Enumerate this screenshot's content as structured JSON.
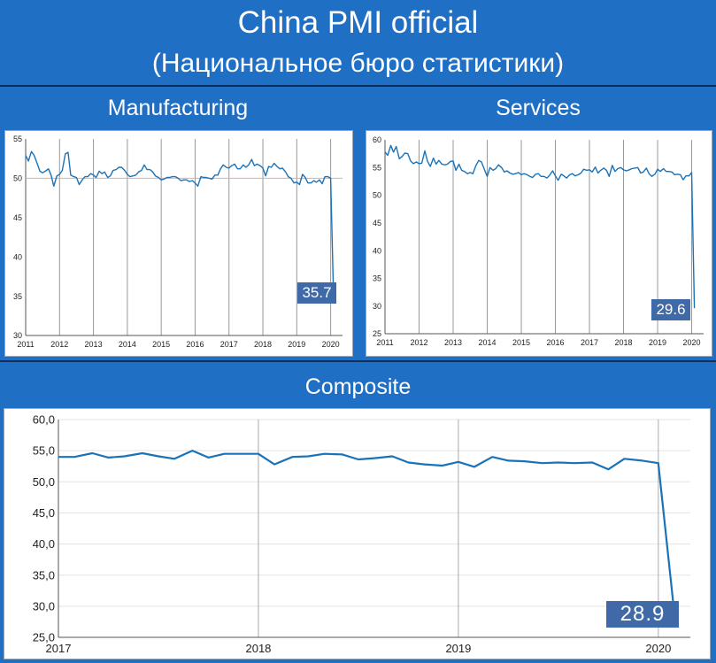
{
  "header": {
    "title": "China PMI official",
    "subtitle": "(Национальное бюро статистики)"
  },
  "colors": {
    "background": "#1f6fc5",
    "line": "#1a73b8",
    "reference_line": "#f2a0a0",
    "callout": "#3f6aa7"
  },
  "chart_data": [
    {
      "id": "manufacturing",
      "type": "line",
      "title": "Manufacturing",
      "callout": "35.7",
      "ylim": [
        30,
        55
      ],
      "yticks": [
        "30",
        "35",
        "40",
        "45",
        "50",
        "55"
      ],
      "xlim": [
        2011,
        2020.35
      ],
      "xticks": [
        "2011",
        "2012",
        "2013",
        "2014",
        "2015",
        "2016",
        "2017",
        "2018",
        "2019",
        "2020"
      ],
      "reference_line": 50,
      "grid": "vertical",
      "series": [
        {
          "x": [
            2011.0,
            2011.08,
            2011.17,
            2011.25,
            2011.33,
            2011.42,
            2011.5,
            2011.58,
            2011.67,
            2011.75,
            2011.83,
            2011.92,
            2012.0,
            2012.08,
            2012.17,
            2012.25,
            2012.33,
            2012.42,
            2012.5,
            2012.58,
            2012.67,
            2012.75,
            2012.83,
            2012.92,
            2013.0,
            2013.08,
            2013.17,
            2013.25,
            2013.33,
            2013.42,
            2013.5,
            2013.58,
            2013.67,
            2013.75,
            2013.83,
            2013.92,
            2014.0,
            2014.08,
            2014.17,
            2014.25,
            2014.33,
            2014.42,
            2014.5,
            2014.58,
            2014.67,
            2014.75,
            2014.83,
            2014.92,
            2015.0,
            2015.08,
            2015.17,
            2015.25,
            2015.33,
            2015.42,
            2015.5,
            2015.58,
            2015.67,
            2015.75,
            2015.83,
            2015.92,
            2016.0,
            2016.08,
            2016.17,
            2016.25,
            2016.33,
            2016.42,
            2016.5,
            2016.58,
            2016.67,
            2016.75,
            2016.83,
            2016.92,
            2017.0,
            2017.08,
            2017.17,
            2017.25,
            2017.33,
            2017.42,
            2017.5,
            2017.58,
            2017.67,
            2017.75,
            2017.83,
            2017.92,
            2018.0,
            2018.08,
            2018.17,
            2018.25,
            2018.33,
            2018.42,
            2018.5,
            2018.58,
            2018.67,
            2018.75,
            2018.83,
            2018.92,
            2019.0,
            2019.08,
            2019.17,
            2019.25,
            2019.33,
            2019.42,
            2019.5,
            2019.58,
            2019.67,
            2019.75,
            2019.83,
            2019.92,
            2020.0,
            2020.08
          ],
          "values": [
            52.9,
            52.2,
            53.4,
            52.9,
            52.0,
            50.9,
            50.7,
            50.9,
            51.2,
            50.4,
            49.0,
            50.3,
            50.5,
            51.0,
            53.1,
            53.3,
            50.4,
            50.2,
            50.1,
            49.2,
            49.8,
            50.2,
            50.2,
            50.6,
            50.4,
            50.1,
            50.9,
            50.6,
            50.8,
            50.1,
            50.3,
            51.0,
            51.1,
            51.4,
            51.4,
            51.0,
            50.5,
            50.2,
            50.3,
            50.4,
            50.8,
            51.0,
            51.7,
            51.1,
            51.1,
            50.8,
            50.3,
            50.1,
            49.8,
            49.9,
            50.1,
            50.1,
            50.2,
            50.2,
            50.0,
            49.7,
            49.8,
            49.8,
            49.6,
            49.7,
            49.4,
            49.0,
            50.2,
            50.1,
            50.1,
            50.0,
            49.9,
            50.4,
            50.4,
            51.2,
            51.7,
            51.4,
            51.3,
            51.6,
            51.8,
            51.2,
            51.2,
            51.7,
            51.4,
            51.7,
            52.4,
            51.6,
            51.8,
            51.6,
            51.3,
            50.3,
            51.5,
            51.4,
            51.9,
            51.5,
            51.2,
            51.3,
            50.8,
            50.2,
            50.0,
            49.4,
            49.5,
            49.2,
            50.5,
            50.1,
            49.4,
            49.4,
            49.7,
            49.5,
            49.8,
            49.3,
            50.2,
            50.2,
            50.0,
            35.7
          ]
        }
      ]
    },
    {
      "id": "services",
      "type": "line",
      "title": "Services",
      "callout": "29.6",
      "ylim": [
        25,
        60
      ],
      "yticks": [
        "25",
        "30",
        "35",
        "40",
        "45",
        "50",
        "55",
        "60"
      ],
      "xlim": [
        2011,
        2020.35
      ],
      "xticks": [
        "2011",
        "2012",
        "2013",
        "2014",
        "2015",
        "2016",
        "2017",
        "2018",
        "2019",
        "2020"
      ],
      "grid": "vertical",
      "series": [
        {
          "x": [
            2011.0,
            2011.08,
            2011.17,
            2011.25,
            2011.33,
            2011.42,
            2011.5,
            2011.58,
            2011.67,
            2011.75,
            2011.83,
            2011.92,
            2012.0,
            2012.08,
            2012.17,
            2012.25,
            2012.33,
            2012.42,
            2012.5,
            2012.58,
            2012.67,
            2012.75,
            2012.83,
            2012.92,
            2013.0,
            2013.08,
            2013.17,
            2013.25,
            2013.33,
            2013.42,
            2013.5,
            2013.58,
            2013.67,
            2013.75,
            2013.83,
            2013.92,
            2014.0,
            2014.08,
            2014.17,
            2014.25,
            2014.33,
            2014.42,
            2014.5,
            2014.58,
            2014.67,
            2014.75,
            2014.83,
            2014.92,
            2015.0,
            2015.08,
            2015.17,
            2015.25,
            2015.33,
            2015.42,
            2015.5,
            2015.58,
            2015.67,
            2015.75,
            2015.83,
            2015.92,
            2016.0,
            2016.08,
            2016.17,
            2016.25,
            2016.33,
            2016.42,
            2016.5,
            2016.58,
            2016.67,
            2016.75,
            2016.83,
            2016.92,
            2017.0,
            2017.08,
            2017.17,
            2017.25,
            2017.33,
            2017.42,
            2017.5,
            2017.58,
            2017.67,
            2017.75,
            2017.83,
            2017.92,
            2018.0,
            2018.08,
            2018.17,
            2018.25,
            2018.33,
            2018.42,
            2018.5,
            2018.58,
            2018.67,
            2018.75,
            2018.83,
            2018.92,
            2019.0,
            2019.08,
            2019.17,
            2019.25,
            2019.33,
            2019.42,
            2019.5,
            2019.58,
            2019.67,
            2019.75,
            2019.83,
            2019.92,
            2020.0,
            2020.08
          ],
          "values": [
            57.8,
            57.2,
            59.0,
            57.8,
            58.8,
            56.6,
            57.0,
            57.6,
            57.5,
            56.2,
            55.7,
            56.0,
            55.7,
            55.8,
            58.0,
            56.1,
            55.2,
            56.7,
            55.6,
            56.3,
            55.6,
            55.5,
            55.6,
            56.1,
            56.2,
            54.5,
            55.6,
            54.5,
            54.3,
            53.9,
            54.1,
            53.9,
            55.4,
            56.3,
            56.0,
            54.6,
            53.4,
            55.0,
            54.5,
            54.8,
            55.5,
            55.0,
            54.2,
            54.4,
            54.0,
            53.8,
            53.9,
            54.1,
            53.7,
            53.9,
            53.7,
            53.4,
            53.2,
            53.8,
            53.9,
            53.4,
            53.4,
            53.1,
            53.6,
            54.4,
            53.5,
            52.7,
            53.8,
            53.5,
            53.1,
            53.7,
            53.9,
            53.5,
            53.7,
            54.0,
            54.7,
            54.5,
            54.6,
            54.2,
            55.1,
            54.0,
            54.5,
            54.9,
            54.5,
            53.4,
            55.4,
            54.3,
            54.8,
            55.0,
            54.6,
            54.4,
            54.6,
            54.8,
            54.9,
            55.0,
            54.0,
            54.2,
            54.9,
            53.9,
            53.4,
            53.8,
            54.7,
            54.3,
            54.8,
            54.3,
            54.3,
            54.2,
            53.7,
            53.8,
            53.7,
            52.8,
            53.5,
            53.5,
            54.1,
            29.6
          ]
        }
      ]
    },
    {
      "id": "composite",
      "type": "line",
      "title": "Composite",
      "callout": "28.9",
      "ylim": [
        25,
        60
      ],
      "yticks": [
        "25,0",
        "30,0",
        "35,0",
        "40,0",
        "45,0",
        "50,0",
        "55,0",
        "60,0"
      ],
      "xlim": [
        2017,
        2020.16
      ],
      "xticks": [
        "2017",
        "2018",
        "2019",
        "2020"
      ],
      "grid": "vertical-and-horizontal",
      "series": [
        {
          "x": [
            2017.0,
            2017.08,
            2017.17,
            2017.25,
            2017.33,
            2017.42,
            2017.5,
            2017.58,
            2017.67,
            2017.75,
            2017.83,
            2017.92,
            2018.0,
            2018.08,
            2018.17,
            2018.25,
            2018.33,
            2018.42,
            2018.5,
            2018.58,
            2018.67,
            2018.75,
            2018.83,
            2018.92,
            2019.0,
            2019.08,
            2019.17,
            2019.25,
            2019.33,
            2019.42,
            2019.5,
            2019.58,
            2019.67,
            2019.75,
            2019.83,
            2019.92,
            2020.0,
            2020.08
          ],
          "values": [
            54.0,
            54.0,
            54.6,
            53.9,
            54.1,
            54.6,
            54.1,
            53.7,
            55.0,
            53.9,
            54.5,
            54.5,
            54.5,
            52.8,
            54.0,
            54.1,
            54.5,
            54.4,
            53.6,
            53.8,
            54.1,
            53.1,
            52.8,
            52.6,
            53.2,
            52.4,
            54.0,
            53.4,
            53.3,
            53.0,
            53.1,
            53.0,
            53.1,
            52.0,
            53.7,
            53.4,
            53.0,
            28.9
          ]
        }
      ]
    }
  ]
}
